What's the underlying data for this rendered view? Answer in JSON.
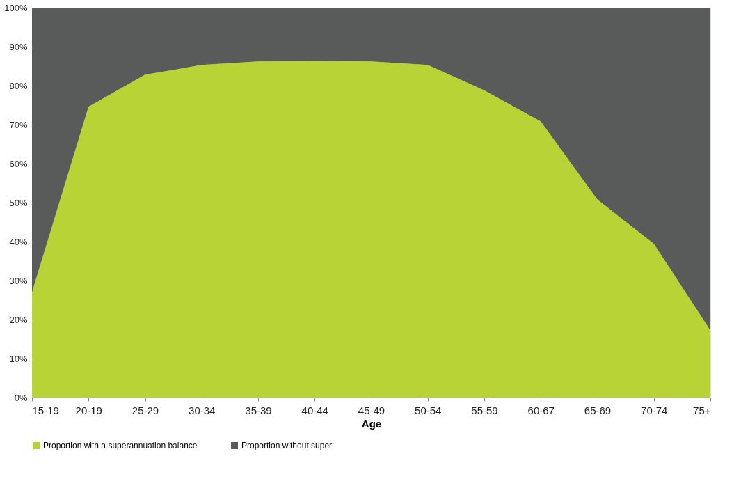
{
  "chart_data": {
    "type": "area",
    "stacked": true,
    "xlabel": "Age",
    "categories": [
      "15-19",
      "20-19",
      "25-29",
      "30-34",
      "35-39",
      "40-44",
      "45-49",
      "50-54",
      "55-59",
      "60-67",
      "65-69",
      "70-74",
      "75+"
    ],
    "series": [
      {
        "name": "Proportion  with  a superannuation balance",
        "color": "#b8d335",
        "values": [
          27.0,
          74.6,
          82.8,
          85.3,
          86.2,
          86.3,
          86.2,
          85.3,
          78.8,
          70.8,
          50.8,
          39.4,
          17.2
        ]
      },
      {
        "name": "Proportion  without  super",
        "color": "#595b5a",
        "values": [
          73.0,
          25.4,
          17.2,
          14.7,
          13.8,
          13.7,
          13.8,
          14.7,
          21.2,
          29.2,
          49.2,
          60.6,
          82.8
        ]
      }
    ],
    "ylim": [
      0,
      100
    ],
    "yticks": [
      {
        "value": 0,
        "label": "0%"
      },
      {
        "value": 10,
        "label": "10%"
      },
      {
        "value": 20,
        "label": "20%"
      },
      {
        "value": 30,
        "label": "30%"
      },
      {
        "value": 40,
        "label": "40%"
      },
      {
        "value": 50,
        "label": "50%"
      },
      {
        "value": 60,
        "label": "60%"
      },
      {
        "value": 70,
        "label": "70%"
      },
      {
        "value": 80,
        "label": "80%"
      },
      {
        "value": 90,
        "label": "90%"
      },
      {
        "value": 100,
        "label": "100%"
      }
    ],
    "grid": false,
    "legend": "bottom"
  }
}
